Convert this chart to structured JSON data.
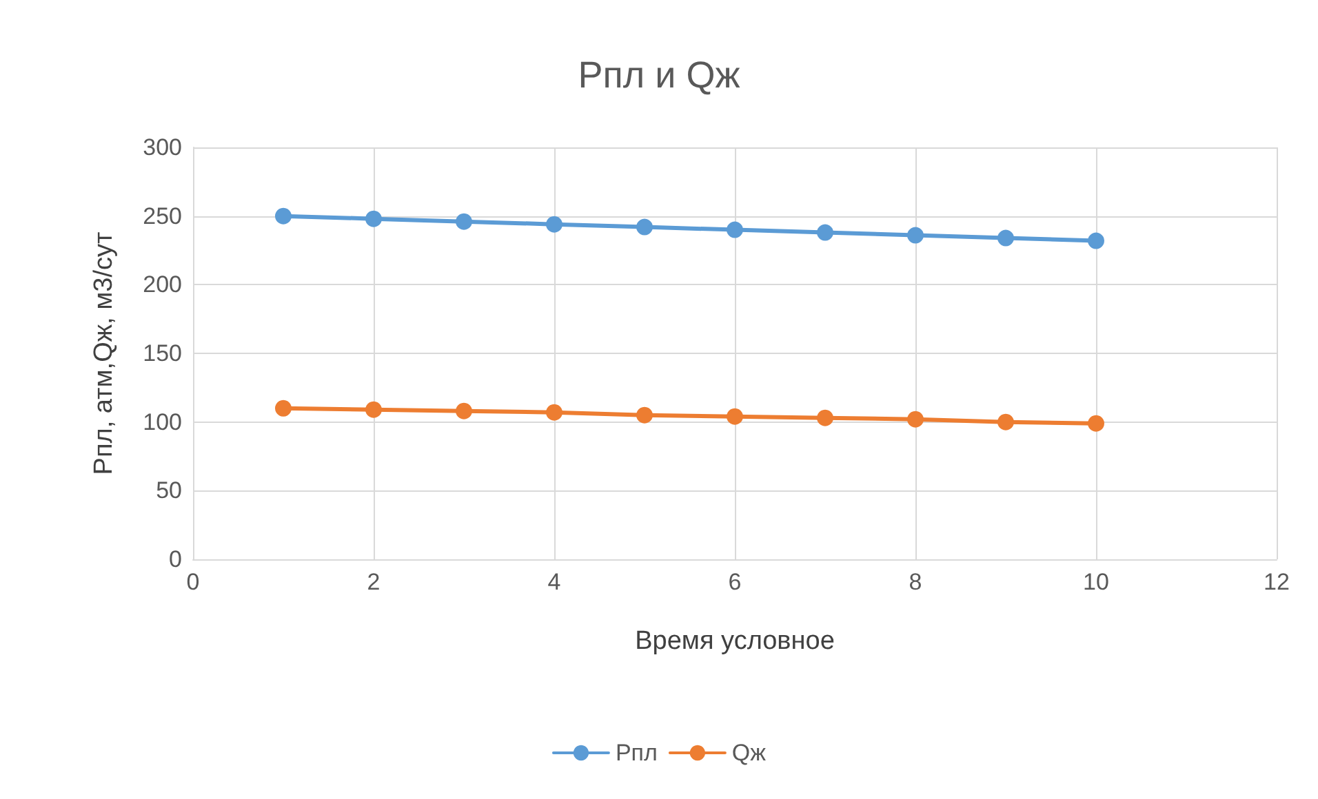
{
  "chart_data": {
    "type": "line",
    "title": "Рпл и Qж",
    "xlabel": "Время условное",
    "ylabel": "Рпл, атм,Qж, м3/сут",
    "x": [
      1,
      2,
      3,
      4,
      5,
      6,
      7,
      8,
      9,
      10
    ],
    "series": [
      {
        "name": "Рпл",
        "color": "#5b9bd5",
        "values": [
          250,
          248,
          246,
          244,
          242,
          240,
          238,
          236,
          234,
          232
        ]
      },
      {
        "name": "Qж",
        "color": "#ed7d31",
        "values": [
          110,
          109,
          108,
          107,
          105,
          104,
          103,
          102,
          100,
          99
        ]
      }
    ],
    "xlim": [
      0,
      12
    ],
    "xticks": [
      0,
      2,
      4,
      6,
      8,
      10,
      12
    ],
    "ylim": [
      0,
      300
    ],
    "yticks": [
      0,
      50,
      100,
      150,
      200,
      250,
      300
    ],
    "grid": true,
    "legend": "bottom",
    "marker": "circle",
    "line_style": "solid"
  }
}
